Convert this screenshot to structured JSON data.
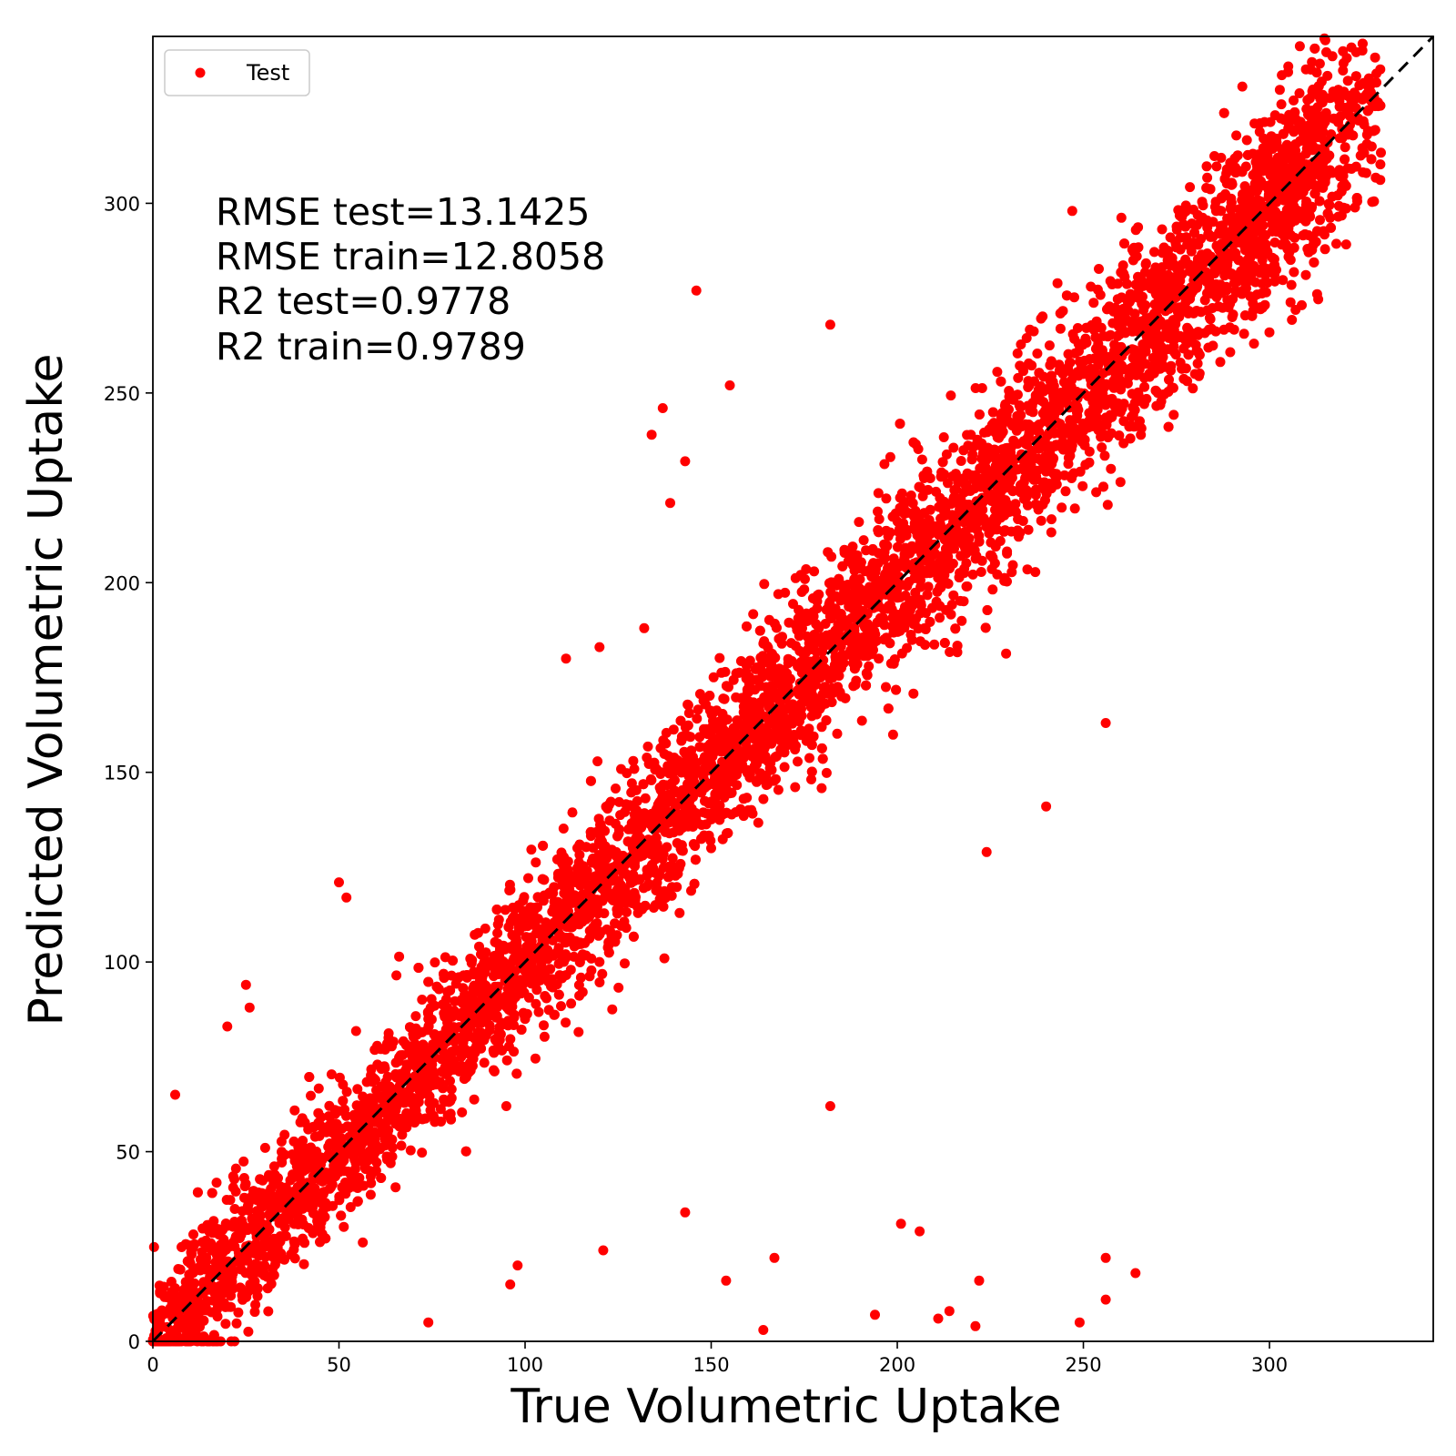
{
  "chart_data": {
    "type": "scatter",
    "title": "",
    "xlabel": "True Volumetric Uptake",
    "ylabel": "Predicted Volumetric Uptake",
    "xlim": [
      0,
      344
    ],
    "ylim": [
      0,
      344
    ],
    "xticks": [
      0,
      50,
      100,
      150,
      200,
      250,
      300
    ],
    "yticks": [
      0,
      50,
      100,
      150,
      200,
      250,
      300
    ],
    "grid": false,
    "legend": {
      "position": "top-left",
      "entries": [
        "Test"
      ]
    },
    "annotations": [
      "RMSE test=13.1425",
      "RMSE train=12.8058",
      "R2 test=0.9778",
      "R2 train=0.9789"
    ],
    "reference_line": {
      "style": "dashed",
      "color": "#000000",
      "from": [
        0,
        0
      ],
      "to": [
        344,
        344
      ]
    },
    "series": [
      {
        "name": "Test",
        "color": "#ff0000",
        "band": {
          "x_range": [
            0,
            330
          ],
          "mean_slope": 1.0,
          "spread_sd": 12
        },
        "outliers": [
          [
            315,
            343
          ],
          [
            329,
            326
          ],
          [
            326,
            308
          ],
          [
            146,
            277
          ],
          [
            182,
            268
          ],
          [
            155,
            252
          ],
          [
            137,
            246
          ],
          [
            134,
            239
          ],
          [
            139,
            221
          ],
          [
            143,
            232
          ],
          [
            163,
            164
          ],
          [
            164,
            3
          ],
          [
            182,
            62
          ],
          [
            194,
            7
          ],
          [
            201,
            31
          ],
          [
            206,
            29
          ],
          [
            214,
            8
          ],
          [
            211,
            6
          ],
          [
            221,
            4
          ],
          [
            222,
            16
          ],
          [
            249,
            5
          ],
          [
            256,
            22
          ],
          [
            256,
            11
          ],
          [
            264,
            18
          ],
          [
            256,
            163
          ],
          [
            240,
            141
          ],
          [
            224,
            129
          ],
          [
            167,
            22
          ],
          [
            154,
            16
          ],
          [
            121,
            24
          ],
          [
            143,
            34
          ],
          [
            96,
            15
          ],
          [
            98,
            20
          ],
          [
            74,
            5
          ],
          [
            6,
            65
          ],
          [
            20,
            83
          ],
          [
            25,
            94
          ],
          [
            26,
            88
          ],
          [
            50,
            121
          ],
          [
            52,
            117
          ],
          [
            120,
            183
          ],
          [
            132,
            188
          ],
          [
            111,
            180
          ],
          [
            247,
            298
          ],
          [
            287,
            312
          ],
          [
            290,
            305
          ],
          [
            307,
            312
          ],
          [
            304,
            322
          ],
          [
            290,
            270
          ],
          [
            300,
            266
          ],
          [
            280,
            255
          ],
          [
            270,
            250
          ],
          [
            260,
            245
          ],
          [
            250,
            240
          ],
          [
            240,
            230
          ],
          [
            230,
            220
          ],
          [
            215,
            205
          ],
          [
            205,
            195
          ],
          [
            195,
            180
          ],
          [
            185,
            170
          ],
          [
            170,
            160
          ],
          [
            160,
            140
          ],
          [
            150,
            130
          ],
          [
            135,
            115
          ],
          [
            120,
            100
          ],
          [
            100,
            85
          ],
          [
            80,
            60
          ],
          [
            60,
            45
          ],
          [
            45,
            30
          ],
          [
            30,
            20
          ]
        ]
      }
    ]
  }
}
